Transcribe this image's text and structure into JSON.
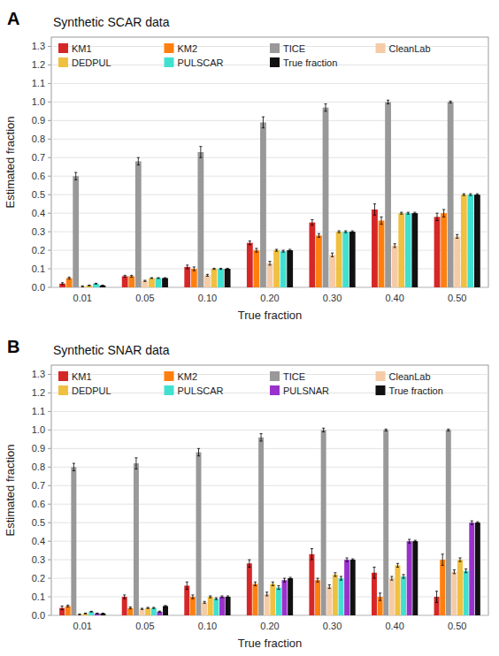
{
  "chart_data": [
    {
      "type": "bar",
      "title": "Synthetic SCAR data",
      "annotations": [
        "A"
      ],
      "xlabel": "True fraction",
      "ylabel": "Estimated fraction",
      "categories": [
        "0.01",
        "0.05",
        "0.10",
        "0.20",
        "0.30",
        "0.40",
        "0.50"
      ],
      "series": [
        {
          "name": "KM1",
          "color": "#d62728",
          "values": [
            0.02,
            0.06,
            0.11,
            0.24,
            0.35,
            0.42,
            0.38
          ],
          "errors": [
            0.005,
            0.005,
            0.01,
            0.01,
            0.015,
            0.03,
            0.02
          ]
        },
        {
          "name": "KM2",
          "color": "#ff7f0e",
          "values": [
            0.05,
            0.06,
            0.1,
            0.2,
            0.28,
            0.36,
            0.4
          ],
          "errors": [
            0.005,
            0.005,
            0.01,
            0.01,
            0.01,
            0.02,
            0.02
          ]
        },
        {
          "name": "TICE",
          "color": "#999999",
          "values": [
            0.6,
            0.68,
            0.73,
            0.89,
            0.97,
            1.0,
            1.0
          ],
          "errors": [
            0.02,
            0.02,
            0.03,
            0.03,
            0.02,
            0.01,
            0.005
          ]
        },
        {
          "name": "CleanLab",
          "color": "#f5cba7",
          "values": [
            0.005,
            0.035,
            0.065,
            0.13,
            0.175,
            0.225,
            0.275
          ],
          "errors": [
            0.003,
            0.003,
            0.005,
            0.01,
            0.01,
            0.01,
            0.01
          ]
        },
        {
          "name": "DEDPUL",
          "color": "#f0c040",
          "values": [
            0.01,
            0.05,
            0.1,
            0.2,
            0.3,
            0.4,
            0.5
          ],
          "errors": [
            0.002,
            0.002,
            0.003,
            0.005,
            0.005,
            0.005,
            0.005
          ]
        },
        {
          "name": "PULSCAR",
          "color": "#40e0d0",
          "values": [
            0.02,
            0.05,
            0.1,
            0.195,
            0.3,
            0.4,
            0.5
          ],
          "errors": [
            0.002,
            0.002,
            0.003,
            0.005,
            0.005,
            0.005,
            0.005
          ]
        },
        {
          "name": "True fraction",
          "color": "#111111",
          "values": [
            0.01,
            0.05,
            0.1,
            0.2,
            0.3,
            0.4,
            0.5
          ],
          "errors": [
            0.002,
            0.002,
            0.003,
            0.005,
            0.005,
            0.005,
            0.005
          ]
        }
      ],
      "ylim": [
        0.0,
        1.35
      ],
      "yticks": [
        {
          "value": 0.0,
          "label": "0.0"
        },
        0.1,
        0.2,
        0.3,
        0.4,
        0.5,
        0.6,
        0.7,
        0.8,
        0.9,
        {
          "value": 1.0,
          "label": "1.0"
        },
        1.1,
        1.2,
        1.3
      ],
      "grid": true,
      "legend": "upper left"
    },
    {
      "type": "bar",
      "title": "Synthetic SNAR data",
      "annotations": [
        "B"
      ],
      "xlabel": "True fraction",
      "ylabel": "Estimated fraction",
      "categories": [
        "0.01",
        "0.05",
        "0.10",
        "0.20",
        "0.30",
        "0.40",
        "0.50"
      ],
      "series": [
        {
          "name": "KM1",
          "color": "#d62728",
          "values": [
            0.04,
            0.1,
            0.16,
            0.28,
            0.33,
            0.23,
            0.1
          ],
          "errors": [
            0.01,
            0.01,
            0.02,
            0.02,
            0.03,
            0.03,
            0.03
          ]
        },
        {
          "name": "KM2",
          "color": "#ff7f0e",
          "values": [
            0.05,
            0.04,
            0.1,
            0.17,
            0.19,
            0.1,
            0.3
          ],
          "errors": [
            0.005,
            0.005,
            0.01,
            0.01,
            0.01,
            0.02,
            0.03
          ]
        },
        {
          "name": "TICE",
          "color": "#999999",
          "values": [
            0.8,
            0.82,
            0.88,
            0.96,
            1.0,
            1.0,
            1.0
          ],
          "errors": [
            0.02,
            0.03,
            0.02,
            0.02,
            0.01,
            0.005,
            0.005
          ]
        },
        {
          "name": "CleanLab",
          "color": "#f5cba7",
          "values": [
            0.005,
            0.035,
            0.07,
            0.115,
            0.155,
            0.2,
            0.235
          ],
          "errors": [
            0.002,
            0.003,
            0.005,
            0.01,
            0.01,
            0.01,
            0.01
          ]
        },
        {
          "name": "DEDPUL",
          "color": "#f0c040",
          "values": [
            0.01,
            0.04,
            0.1,
            0.17,
            0.22,
            0.27,
            0.3
          ],
          "errors": [
            0.002,
            0.003,
            0.005,
            0.01,
            0.01,
            0.01,
            0.01
          ]
        },
        {
          "name": "PULSCAR",
          "color": "#40e0d0",
          "values": [
            0.02,
            0.04,
            0.09,
            0.15,
            0.2,
            0.21,
            0.24
          ],
          "errors": [
            0.002,
            0.003,
            0.005,
            0.01,
            0.01,
            0.01,
            0.01
          ]
        },
        {
          "name": "PULSNAR",
          "color": "#9932cc",
          "values": [
            0.01,
            0.02,
            0.1,
            0.19,
            0.3,
            0.4,
            0.5
          ],
          "errors": [
            0.002,
            0.003,
            0.005,
            0.01,
            0.01,
            0.01,
            0.01
          ]
        },
        {
          "name": "True fraction",
          "color": "#111111",
          "values": [
            0.01,
            0.05,
            0.1,
            0.2,
            0.3,
            0.4,
            0.5
          ],
          "errors": [
            0.002,
            0.003,
            0.005,
            0.005,
            0.005,
            0.005,
            0.005
          ]
        }
      ],
      "ylim": [
        0.0,
        1.35
      ],
      "yticks": [
        {
          "value": 0.0,
          "label": "0.0"
        },
        0.1,
        0.2,
        0.3,
        0.4,
        0.5,
        0.6,
        0.7,
        0.8,
        0.9,
        {
          "value": 1.0,
          "label": "1.0"
        },
        1.1,
        1.2,
        1.3
      ],
      "grid": true,
      "legend": "upper left"
    }
  ]
}
